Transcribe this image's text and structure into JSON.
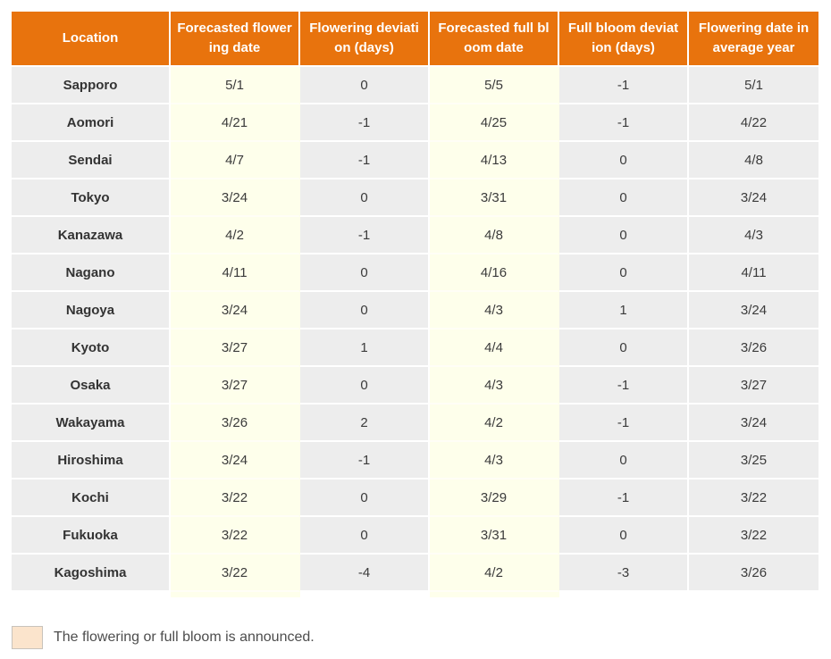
{
  "colors": {
    "header_bg": "#E8730D",
    "header_text": "#FFFFFF",
    "cell_gray": "#EDEDED",
    "cell_announced": "#FEFFEB",
    "cell_text": "#3B3B3B",
    "legend_swatch_fill": "#FBE4CC",
    "legend_swatch_border": "#C8C3BC"
  },
  "chart_data": {
    "type": "table",
    "columns": [
      {
        "key": "location",
        "label": "Location",
        "label_lines": [
          "Location"
        ],
        "announced": false
      },
      {
        "key": "forecasted_flowering_date",
        "label": "Forecasted flowering date",
        "label_lines": [
          "Forecasted flower",
          "ing date"
        ],
        "announced": true
      },
      {
        "key": "flowering_deviation_days",
        "label": "Flowering deviation (days)",
        "label_lines": [
          "Flowering deviati",
          "on (days)"
        ],
        "announced": false
      },
      {
        "key": "forecasted_full_bloom_date",
        "label": "Forecasted full bloom date",
        "label_lines": [
          "Forecasted full bl",
          "oom date"
        ],
        "announced": true
      },
      {
        "key": "full_bloom_deviation_days",
        "label": "Full bloom deviation (days)",
        "label_lines": [
          "Full bloom deviat",
          "ion (days)"
        ],
        "announced": false
      },
      {
        "key": "flowering_date_in_average_year",
        "label": "Flowering date in average year",
        "label_lines": [
          "Flowering date in",
          "average year"
        ],
        "announced": false
      }
    ],
    "rows": [
      [
        "Sapporo",
        "5/1",
        "0",
        "5/5",
        "-1",
        "5/1"
      ],
      [
        "Aomori",
        "4/21",
        "-1",
        "4/25",
        "-1",
        "4/22"
      ],
      [
        "Sendai",
        "4/7",
        "-1",
        "4/13",
        "0",
        "4/8"
      ],
      [
        "Tokyo",
        "3/24",
        "0",
        "3/31",
        "0",
        "3/24"
      ],
      [
        "Kanazawa",
        "4/2",
        "-1",
        "4/8",
        "0",
        "4/3"
      ],
      [
        "Nagano",
        "4/11",
        "0",
        "4/16",
        "0",
        "4/11"
      ],
      [
        "Nagoya",
        "3/24",
        "0",
        "4/3",
        "1",
        "3/24"
      ],
      [
        "Kyoto",
        "3/27",
        "1",
        "4/4",
        "0",
        "3/26"
      ],
      [
        "Osaka",
        "3/27",
        "0",
        "4/3",
        "-1",
        "3/27"
      ],
      [
        "Wakayama",
        "3/26",
        "2",
        "4/2",
        "-1",
        "3/24"
      ],
      [
        "Hiroshima",
        "3/24",
        "-1",
        "4/3",
        "0",
        "3/25"
      ],
      [
        "Kochi",
        "3/22",
        "0",
        "3/29",
        "-1",
        "3/22"
      ],
      [
        "Fukuoka",
        "3/22",
        "0",
        "3/31",
        "0",
        "3/22"
      ],
      [
        "Kagoshima",
        "3/22",
        "-4",
        "4/2",
        "-3",
        "3/26"
      ]
    ]
  },
  "legend": {
    "text": "The flowering or full bloom is announced."
  }
}
